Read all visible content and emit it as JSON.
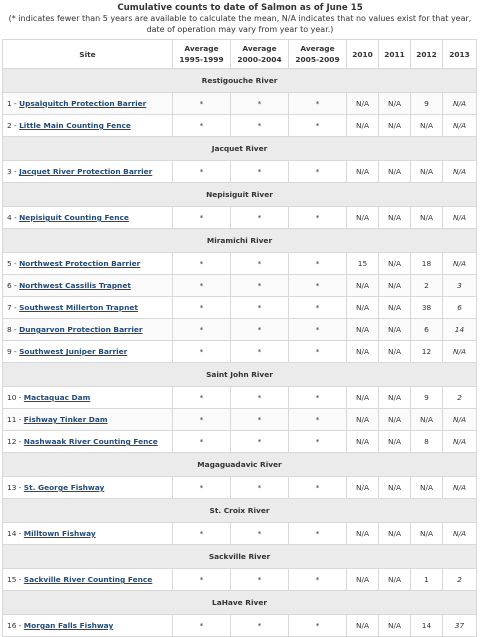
{
  "caption": {
    "title": "Cumulative counts to date of Salmon as of June 15",
    "note": "(* indicates fewer than 5 years are available to calculate the mean, N/A indicates that no values exist for that year, date of operation may vary from year to year.)"
  },
  "headers": {
    "site": "Site",
    "avg1": "Average 1995-1999",
    "avg2": "Average 2000-2004",
    "avg3": "Average 2005-2009",
    "y2010": "2010",
    "y2011": "2011",
    "y2012": "2012",
    "y2013": "2013"
  },
  "groups": [
    {
      "river": "Restigouche River",
      "sites": [
        {
          "num": "1 - ",
          "name": "Upsalquitch Protection Barrier",
          "a1": "*",
          "a2": "*",
          "a3": "*",
          "y2010": "N/A",
          "y2011": "N/A",
          "y2012": "9",
          "y2013": "N/A"
        },
        {
          "num": "2 - ",
          "name": "Little Main Counting Fence",
          "a1": "*",
          "a2": "*",
          "a3": "*",
          "y2010": "N/A",
          "y2011": "N/A",
          "y2012": "N/A",
          "y2013": "N/A"
        }
      ]
    },
    {
      "river": "Jacquet River",
      "sites": [
        {
          "num": "3 - ",
          "name": "Jacquet River Protection Barrier",
          "a1": "*",
          "a2": "*",
          "a3": "*",
          "y2010": "N/A",
          "y2011": "N/A",
          "y2012": "N/A",
          "y2013": "N/A"
        }
      ]
    },
    {
      "river": "Nepisiguit River",
      "sites": [
        {
          "num": "4 - ",
          "name": "Nepisiguit Counting Fence",
          "a1": "*",
          "a2": "*",
          "a3": "*",
          "y2010": "N/A",
          "y2011": "N/A",
          "y2012": "N/A",
          "y2013": "N/A"
        }
      ]
    },
    {
      "river": "Miramichi River",
      "sites": [
        {
          "num": "5 - ",
          "name": "Northwest Protection Barrier",
          "a1": "*",
          "a2": "*",
          "a3": "*",
          "y2010": "15",
          "y2011": "N/A",
          "y2012": "18",
          "y2013": "N/A"
        },
        {
          "num": "6 - ",
          "name": "Northwest Cassilis Trapnet",
          "a1": "*",
          "a2": "*",
          "a3": "*",
          "y2010": "N/A",
          "y2011": "N/A",
          "y2012": "2",
          "y2013": "3"
        },
        {
          "num": "7 - ",
          "name": "Southwest Millerton Trapnet",
          "a1": "*",
          "a2": "*",
          "a3": "*",
          "y2010": "N/A",
          "y2011": "N/A",
          "y2012": "38",
          "y2013": "6"
        },
        {
          "num": "8 - ",
          "name": "Dungarvon Protection Barrier",
          "a1": "*",
          "a2": "*",
          "a3": "*",
          "y2010": "N/A",
          "y2011": "N/A",
          "y2012": "6",
          "y2013": "14"
        },
        {
          "num": "9 - ",
          "name": "Southwest Juniper Barrier",
          "a1": "*",
          "a2": "*",
          "a3": "*",
          "y2010": "N/A",
          "y2011": "N/A",
          "y2012": "12",
          "y2013": "N/A"
        }
      ]
    },
    {
      "river": "Saint John River",
      "sites": [
        {
          "num": "10 - ",
          "name": "Mactaquac Dam",
          "a1": "*",
          "a2": "*",
          "a3": "*",
          "y2010": "N/A",
          "y2011": "N/A",
          "y2012": "9",
          "y2013": "2"
        },
        {
          "num": "11 - ",
          "name": "Fishway Tinker Dam",
          "a1": "*",
          "a2": "*",
          "a3": "*",
          "y2010": "N/A",
          "y2011": "N/A",
          "y2012": "N/A",
          "y2013": "N/A"
        },
        {
          "num": "12 - ",
          "name": "Nashwaak River Counting Fence",
          "a1": "*",
          "a2": "*",
          "a3": "*",
          "y2010": "N/A",
          "y2011": "N/A",
          "y2012": "8",
          "y2013": "N/A"
        }
      ]
    },
    {
      "river": "Magaguadavic River",
      "sites": [
        {
          "num": "13 - ",
          "name": "St. George Fishway",
          "a1": "*",
          "a2": "*",
          "a3": "*",
          "y2010": "N/A",
          "y2011": "N/A",
          "y2012": "N/A",
          "y2013": "N/A"
        }
      ]
    },
    {
      "river": "St. Croix River",
      "sites": [
        {
          "num": "14 - ",
          "name": "Milltown Fishway",
          "a1": "*",
          "a2": "*",
          "a3": "*",
          "y2010": "N/A",
          "y2011": "N/A",
          "y2012": "N/A",
          "y2013": "N/A"
        }
      ]
    },
    {
      "river": "Sackville River",
      "sites": [
        {
          "num": "15 - ",
          "name": "Sackville River Counting Fence",
          "a1": "*",
          "a2": "*",
          "a3": "*",
          "y2010": "N/A",
          "y2011": "N/A",
          "y2012": "1",
          "y2013": "2"
        }
      ]
    },
    {
      "river": "LaHave River",
      "sites": [
        {
          "num": "16 - ",
          "name": "Morgan Falls Fishway",
          "a1": "*",
          "a2": "*",
          "a3": "*",
          "y2010": "N/A",
          "y2011": "N/A",
          "y2012": "14",
          "y2013": "37"
        }
      ]
    }
  ]
}
